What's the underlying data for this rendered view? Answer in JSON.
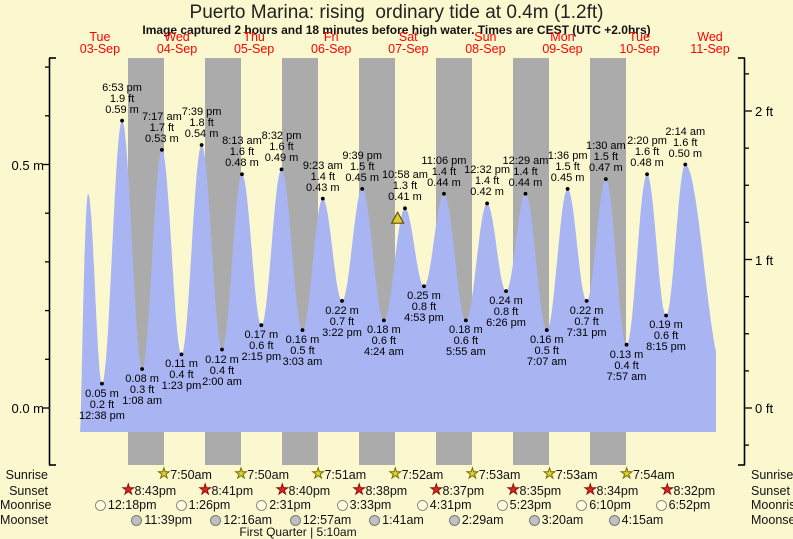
{
  "header": {
    "title": "Puerto Marina: rising  ordinary tide at 0.4m (1.2ft)",
    "subtitle": "Image captured 2 hours and 18 minutes before high water. Times are CEST (UTC +2.0hrs)"
  },
  "colors": {
    "page_background": "#fbf8d0",
    "night_band": "#ababab",
    "tide_fill": "#a9b4f2",
    "day_label_red": "#ff0000",
    "sunrise_star": "#dcd531",
    "sunset_star": "#e02818",
    "moonrise_circle": "#ffffde",
    "moonset_circle": "#bfbfbf",
    "now_marker": "#e3cc3a"
  },
  "chart_data": {
    "type": "area",
    "title": "Puerto Marina: rising  ordinary tide at 0.4m (1.2ft)",
    "ylabel_left_unit": "m",
    "ylabel_right_unit": "ft",
    "grid": false,
    "ylim_m": [
      -0.05,
      0.72
    ],
    "days": [
      {
        "name": "Tue",
        "date": "03-Sep"
      },
      {
        "name": "Wed",
        "date": "04-Sep"
      },
      {
        "name": "Thu",
        "date": "05-Sep"
      },
      {
        "name": "Fri",
        "date": "06-Sep"
      },
      {
        "name": "Sat",
        "date": "07-Sep"
      },
      {
        "name": "Sun",
        "date": "08-Sep"
      },
      {
        "name": "Mon",
        "date": "09-Sep"
      },
      {
        "name": "Tue",
        "date": "10-Sep"
      },
      {
        "name": "Wed",
        "date": "11-Sep"
      }
    ],
    "axis_left": [
      {
        "label": "0.5 m",
        "m": 0.5
      },
      {
        "label": "0.0 m",
        "m": 0.0
      }
    ],
    "axis_right": [
      {
        "label": "2 ft",
        "ft": 2
      },
      {
        "label": "1 ft",
        "ft": 1
      },
      {
        "label": "0 ft",
        "ft": 0
      }
    ],
    "tide_events": [
      {
        "type": "high",
        "t": 8.3,
        "h": 0.44,
        "unlabeled": true
      },
      {
        "type": "low",
        "t": 12.633,
        "h": 0.05,
        "m": "0.05 m",
        "ft": "0.2 ft",
        "time": "12:38 pm"
      },
      {
        "type": "high",
        "t": 18.883,
        "h": 0.59,
        "m": "0.59 m",
        "ft": "1.9 ft",
        "time": "6:53 pm"
      },
      {
        "type": "low",
        "t": 25.133,
        "h": 0.08,
        "m": "0.08 m",
        "ft": "0.3 ft",
        "time": "1:08 am"
      },
      {
        "type": "high",
        "t": 31.283,
        "h": 0.53,
        "m": "0.53 m",
        "ft": "1.7 ft",
        "time": "7:17 am"
      },
      {
        "type": "low",
        "t": 37.383,
        "h": 0.11,
        "m": "0.11 m",
        "ft": "0.4 ft",
        "time": "1:23 pm"
      },
      {
        "type": "high",
        "t": 43.65,
        "h": 0.54,
        "m": "0.54 m",
        "ft": "1.8 ft",
        "time": "7:39 pm"
      },
      {
        "type": "low",
        "t": 50.0,
        "h": 0.12,
        "m": "0.12 m",
        "ft": "0.4 ft",
        "time": "2:00 am"
      },
      {
        "type": "high",
        "t": 56.217,
        "h": 0.48,
        "m": "0.48 m",
        "ft": "1.6 ft",
        "time": "8:13 am"
      },
      {
        "type": "low",
        "t": 62.25,
        "h": 0.17,
        "m": "0.17 m",
        "ft": "0.6 ft",
        "time": "2:15 pm"
      },
      {
        "type": "high",
        "t": 68.533,
        "h": 0.49,
        "m": "0.49 m",
        "ft": "1.6 ft",
        "time": "8:32 pm"
      },
      {
        "type": "low",
        "t": 75.05,
        "h": 0.16,
        "m": "0.16 m",
        "ft": "0.5 ft",
        "time": "3:03 am"
      },
      {
        "type": "high",
        "t": 81.383,
        "h": 0.43,
        "m": "0.43 m",
        "ft": "1.4 ft",
        "time": "9:23 am"
      },
      {
        "type": "low",
        "t": 87.367,
        "h": 0.22,
        "m": "0.22 m",
        "ft": "0.7 ft",
        "time": "3:22 pm"
      },
      {
        "type": "high",
        "t": 93.65,
        "h": 0.45,
        "m": "0.45 m",
        "ft": "1.5 ft",
        "time": "9:39 pm"
      },
      {
        "type": "low",
        "t": 100.4,
        "h": 0.18,
        "m": "0.18 m",
        "ft": "0.6 ft",
        "time": "4:24 am"
      },
      {
        "type": "high",
        "t": 106.967,
        "h": 0.41,
        "m": "0.41 m",
        "ft": "1.3 ft",
        "time": "10:58 am"
      },
      {
        "type": "low",
        "t": 112.883,
        "h": 0.25,
        "m": "0.25 m",
        "ft": "0.8 ft",
        "time": "4:53 pm"
      },
      {
        "type": "high",
        "t": 119.1,
        "h": 0.44,
        "m": "0.44 m",
        "ft": "1.4 ft",
        "time": "11:06 pm"
      },
      {
        "type": "low",
        "t": 125.917,
        "h": 0.18,
        "m": "0.18 m",
        "ft": "0.6 ft",
        "time": "5:55 am"
      },
      {
        "type": "high",
        "t": 132.533,
        "h": 0.42,
        "m": "0.42 m",
        "ft": "1.4 ft",
        "time": "12:32 pm"
      },
      {
        "type": "low",
        "t": 138.433,
        "h": 0.24,
        "m": "0.24 m",
        "ft": "0.8 ft",
        "time": "6:26 pm"
      },
      {
        "type": "high",
        "t": 144.483,
        "h": 0.44,
        "m": "0.44 m",
        "ft": "1.4 ft",
        "time": "12:29 am"
      },
      {
        "type": "low",
        "t": 151.117,
        "h": 0.16,
        "m": "0.16 m",
        "ft": "0.5 ft",
        "time": "7:07 am"
      },
      {
        "type": "high",
        "t": 157.6,
        "h": 0.45,
        "m": "0.45 m",
        "ft": "1.5 ft",
        "time": "1:36 pm"
      },
      {
        "type": "low",
        "t": 163.517,
        "h": 0.22,
        "m": "0.22 m",
        "ft": "0.7 ft",
        "time": "7:31 pm"
      },
      {
        "type": "high",
        "t": 169.5,
        "h": 0.47,
        "m": "0.47 m",
        "ft": "1.5 ft",
        "time": "1:30 am"
      },
      {
        "type": "low",
        "t": 175.95,
        "h": 0.13,
        "m": "0.13 m",
        "ft": "0.4 ft",
        "time": "7:57 am"
      },
      {
        "type": "high",
        "t": 182.333,
        "h": 0.48,
        "m": "0.48 m",
        "ft": "1.6 ft",
        "time": "2:20 pm"
      },
      {
        "type": "low",
        "t": 188.25,
        "h": 0.19,
        "m": "0.19 m",
        "ft": "0.6 ft",
        "time": "8:15 pm"
      },
      {
        "type": "high",
        "t": 194.233,
        "h": 0.5,
        "m": "0.50 m",
        "ft": "1.6 ft",
        "time": "2:14 am"
      }
    ],
    "curve_padding": {
      "start": {
        "t": 4.0,
        "h": -0.4
      },
      "end": {
        "t": 206.0,
        "h": 0.08
      },
      "cut_t": 203.8
    },
    "current_marker": {
      "t": 104.67,
      "h": 0.4
    },
    "astro": {
      "rows": [
        {
          "id": "sunrise",
          "label": "Sunrise",
          "icon": "sunrise-star-icon",
          "items": [
            {
              "time": "7:50am",
              "t": 31.833
            },
            {
              "time": "7:50am",
              "t": 55.833
            },
            {
              "time": "7:51am",
              "t": 79.85
            },
            {
              "time": "7:52am",
              "t": 103.867
            },
            {
              "time": "7:53am",
              "t": 127.883
            },
            {
              "time": "7:53am",
              "t": 151.883
            },
            {
              "time": "7:54am",
              "t": 175.9
            }
          ]
        },
        {
          "id": "sunset",
          "label": "Sunset",
          "icon": "sunset-star-icon",
          "items": [
            {
              "time": "8:43pm",
              "t": 20.717
            },
            {
              "time": "8:41pm",
              "t": 44.683
            },
            {
              "time": "8:40pm",
              "t": 68.667
            },
            {
              "time": "8:38pm",
              "t": 92.633
            },
            {
              "time": "8:37pm",
              "t": 116.617
            },
            {
              "time": "8:35pm",
              "t": 140.583
            },
            {
              "time": "8:34pm",
              "t": 164.567
            },
            {
              "time": "8:32pm",
              "t": 188.533
            }
          ]
        },
        {
          "id": "moonrise",
          "label": "Moonrise",
          "icon": "moonrise-circle-icon",
          "items": [
            {
              "time": "12:18pm",
              "t": 12.3
            },
            {
              "time": "1:26pm",
              "t": 37.433
            },
            {
              "time": "2:31pm",
              "t": 62.517
            },
            {
              "time": "3:33pm",
              "t": 87.55
            },
            {
              "time": "4:31pm",
              "t": 112.517
            },
            {
              "time": "5:23pm",
              "t": 137.383
            },
            {
              "time": "6:10pm",
              "t": 162.167
            },
            {
              "time": "6:52pm",
              "t": 186.867
            }
          ]
        },
        {
          "id": "moonset",
          "label": "Moonset",
          "icon": "moonset-circle-icon",
          "items": [
            {
              "time": "11:39pm",
              "t": 23.65
            },
            {
              "time": "12:16am",
              "t": 48.267
            },
            {
              "time": "12:57am",
              "t": 72.95
            },
            {
              "time": "1:41am",
              "t": 97.683
            },
            {
              "time": "2:29am",
              "t": 122.483
            },
            {
              "time": "3:20am",
              "t": 147.333
            },
            {
              "time": "4:15am",
              "t": 172.25
            }
          ]
        }
      ],
      "phase_note": "First Quarter | 5:10am"
    }
  }
}
